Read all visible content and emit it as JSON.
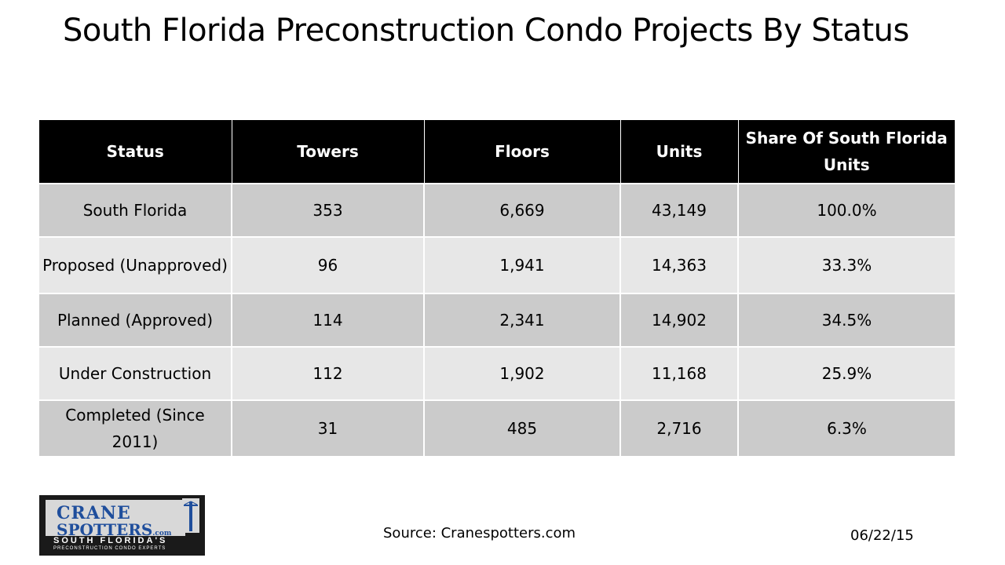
{
  "title": "South Florida Preconstruction Condo Projects By Status",
  "table": {
    "headers": [
      "Status",
      "Towers",
      "Floors",
      "Units",
      "Share Of South Florida Units"
    ],
    "rows": [
      [
        "South Florida",
        "353",
        "6,669",
        "43,149",
        "100.0%"
      ],
      [
        "Proposed (Unapproved)",
        "96",
        "1,941",
        "14,363",
        "33.3%"
      ],
      [
        "Planned (Approved)",
        "114",
        "2,341",
        "14,902",
        "34.5%"
      ],
      [
        "Under Construction",
        "112",
        "1,902",
        "11,168",
        "25.9%"
      ],
      [
        "Completed (Since 2011)",
        "31",
        "485",
        "2,716",
        "6.3%"
      ]
    ]
  },
  "logo": {
    "line1": "CRANE",
    "line2": "SPOTTERS",
    "domain": ".com",
    "tagline": "SOUTH FLORIDA'S",
    "subtagline": "PRECONSTRUCTION CONDO EXPERTS"
  },
  "source": "Source: Cranespotters.com",
  "date": "06/22/15",
  "colors": {
    "header_bg": "#000000",
    "header_text": "#ffffff",
    "row_dark": "#cbcbcb",
    "row_light": "#e7e7e7",
    "logo_blue": "#1f4e9c"
  }
}
